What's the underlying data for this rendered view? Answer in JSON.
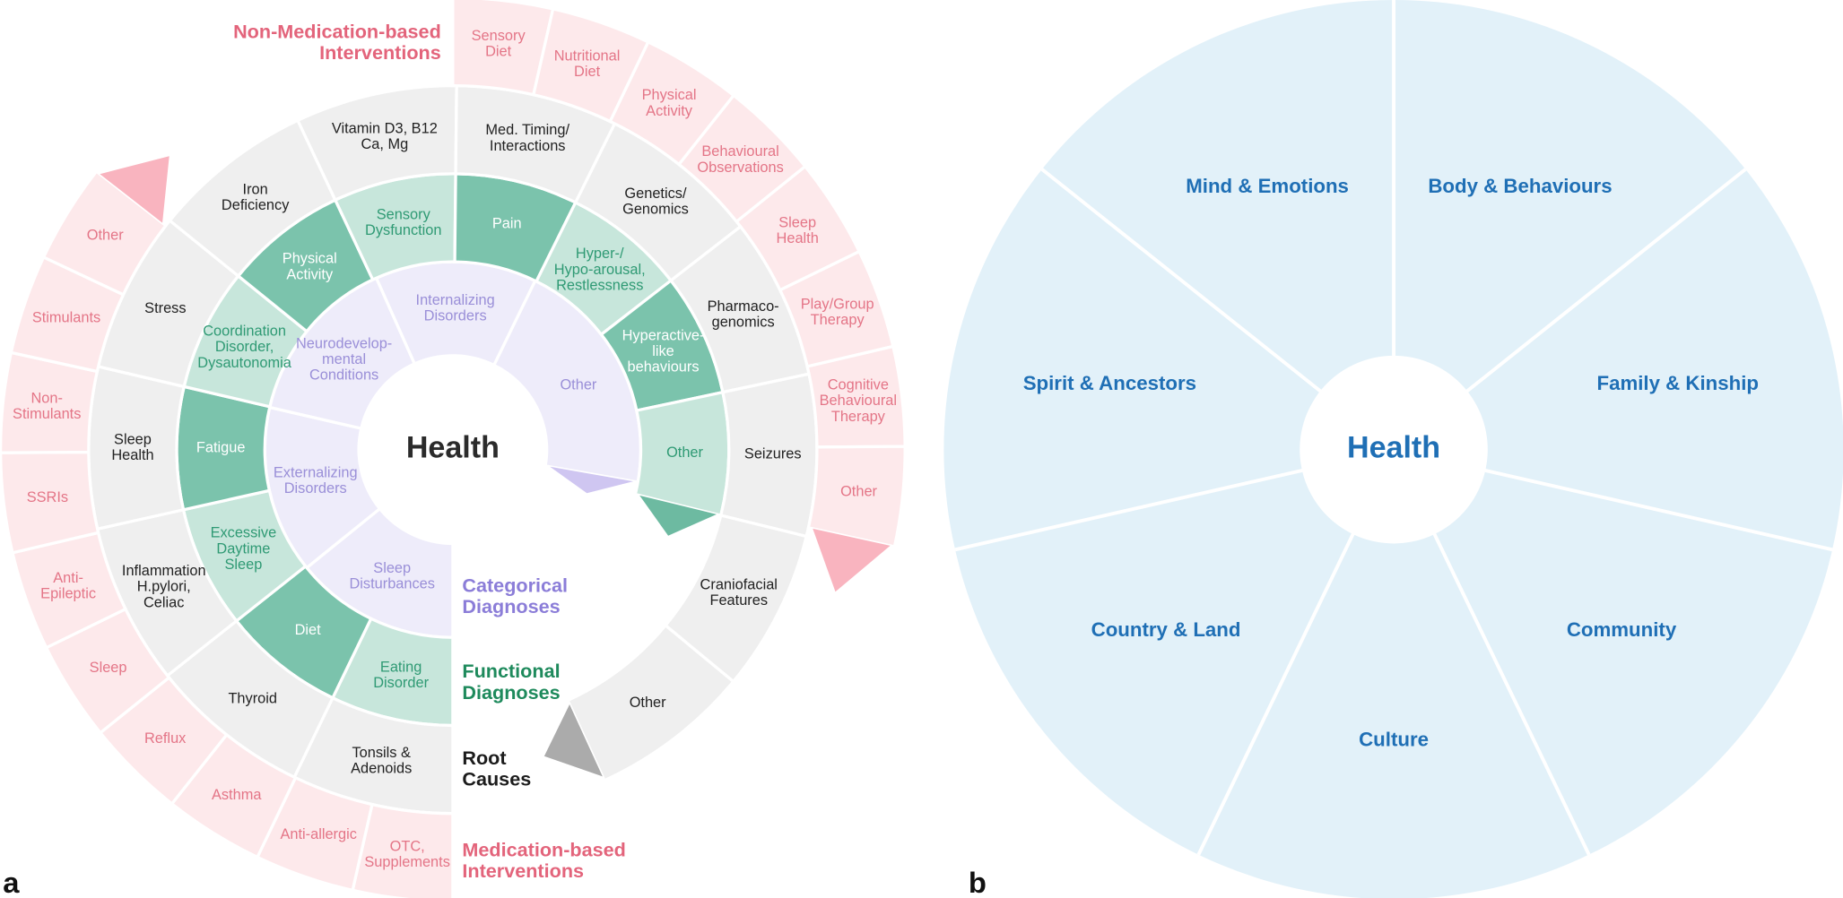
{
  "panel_a": {
    "label": "a",
    "center": "Health",
    "legend": {
      "non_medication": [
        "Non-Medication-based",
        "Interventions"
      ],
      "categorical": [
        "Categorical",
        "Diagnoses"
      ],
      "functional": [
        "Functional",
        "Diagnoses"
      ],
      "root": [
        "Root",
        "Causes"
      ],
      "medication": [
        "Medication-based",
        "Interventions"
      ]
    },
    "rings": {
      "categorical": [
        [
          "Sleep",
          "Disturbances"
        ],
        [
          "Externalizing",
          "Disorders"
        ],
        [
          "Neurodevelop-",
          "mental",
          "Conditions"
        ],
        [
          "Internalizing",
          "Disorders"
        ],
        [
          "Other"
        ]
      ],
      "functional": [
        [
          "Eating",
          "Disorder"
        ],
        [
          "Diet"
        ],
        [
          "Excessive",
          "Daytime",
          "Sleep"
        ],
        [
          "Fatigue"
        ],
        [
          "Coordination",
          "Disorder,",
          "Dysautonomia"
        ],
        [
          "Physical",
          "Activity"
        ],
        [
          "Sensory",
          "Dysfunction"
        ],
        [
          "Pain"
        ],
        [
          "Hyper-/",
          "Hypo-arousal,",
          "Restlessness"
        ],
        [
          "Hyperactive-",
          "like",
          "behaviours"
        ],
        [
          "Other"
        ]
      ],
      "root": [
        [
          "Tonsils &",
          "Adenoids"
        ],
        [
          "Thyroid"
        ],
        [
          "Inflammation",
          "H.pylori,",
          "Celiac"
        ],
        [
          "Sleep",
          "Health"
        ],
        [
          "Stress"
        ],
        [
          "Iron",
          "Deficiency"
        ],
        [
          "Vitamin D3, B12",
          "Ca, Mg"
        ],
        [
          "Med. Timing/",
          "Interactions"
        ],
        [
          "Genetics/",
          "Genomics"
        ],
        [
          "Pharmaco-",
          "genomics"
        ],
        [
          "Seizures"
        ],
        [
          "Craniofacial",
          "Features"
        ],
        [
          "Other"
        ]
      ],
      "non_medication": [
        [
          "Sensory",
          "Diet"
        ],
        [
          "Nutritional",
          "Diet"
        ],
        [
          "Physical",
          "Activity"
        ],
        [
          "Behavioural",
          "Observations"
        ],
        [
          "Sleep",
          "Health"
        ],
        [
          "Play/Group",
          "Therapy"
        ],
        [
          "Cognitive",
          "Behavioural",
          "Therapy"
        ],
        [
          "Other"
        ]
      ],
      "medication": [
        [
          "OTC,",
          "Supplements"
        ],
        [
          "Anti-allergic"
        ],
        [
          "Asthma"
        ],
        [
          "Reflux"
        ],
        [
          "Sleep"
        ],
        [
          "Anti-",
          "Epileptic"
        ],
        [
          "SSRIs"
        ],
        [
          "Non-",
          "Stimulants"
        ],
        [
          "Stimulants"
        ],
        [
          "Other"
        ]
      ]
    }
  },
  "panel_b": {
    "label": "b",
    "center": "Health",
    "domains": [
      "Body & Behaviours",
      "Family & Kinship",
      "Community",
      "Culture",
      "Country & Land",
      "Spirit & Ancestors",
      "Mind & Emotions"
    ]
  }
}
